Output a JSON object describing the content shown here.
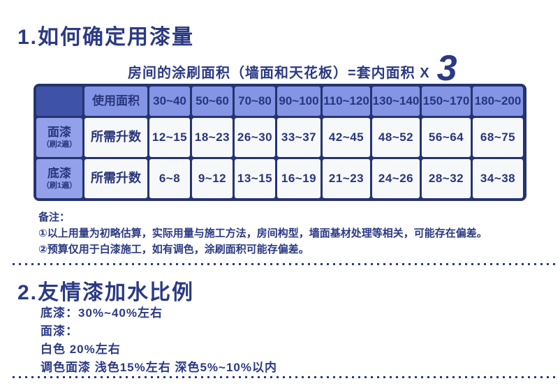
{
  "colors": {
    "text_navy": "#2b3a85",
    "table_frame": "#25346f",
    "corner_cell": "#3e53a8",
    "header_cell": "#8495e6",
    "row_label_cell": "#93a0ea",
    "data_cell": "#f7f8fa"
  },
  "s1": {
    "title": "1.如何确定用漆量",
    "formula": {
      "text": "房间的涂刷面积（墙面和天花板）=套内面积 X",
      "multiplier": "3"
    },
    "table": {
      "header_label": "使用面积",
      "liters_label": "所需升数",
      "area_columns": [
        "30~40",
        "50~60",
        "70~80",
        "90~100",
        "110~120",
        "130~140",
        "150~170",
        "180~200"
      ],
      "rows": [
        {
          "name": "面漆",
          "sub": "（刷2遍）",
          "values": [
            "12~15",
            "18~23",
            "26~30",
            "33~37",
            "42~45",
            "48~52",
            "56~64",
            "68~75"
          ]
        },
        {
          "name": "底漆",
          "sub": "（刷1遍）",
          "values": [
            "6~8",
            "9~12",
            "13~15",
            "16~19",
            "21~23",
            "24~26",
            "28~32",
            "34~38"
          ]
        }
      ]
    },
    "notes": {
      "title": "备注：",
      "items": [
        "①以上用量为初略估算，实际用量与施工方法，房间构型，墙面基材处理等相关，可能存在偏差。",
        "②预算仅用于白漆施工，如有调色，涂刷面积可能存偏差。"
      ]
    }
  },
  "s2": {
    "title": "2.友情漆加水比例",
    "lines": [
      "底漆：30%~40%左右",
      "面漆：",
      "白色  20%左右",
      "调色面漆  浅色15%左右  深色5%~10%以内"
    ]
  }
}
